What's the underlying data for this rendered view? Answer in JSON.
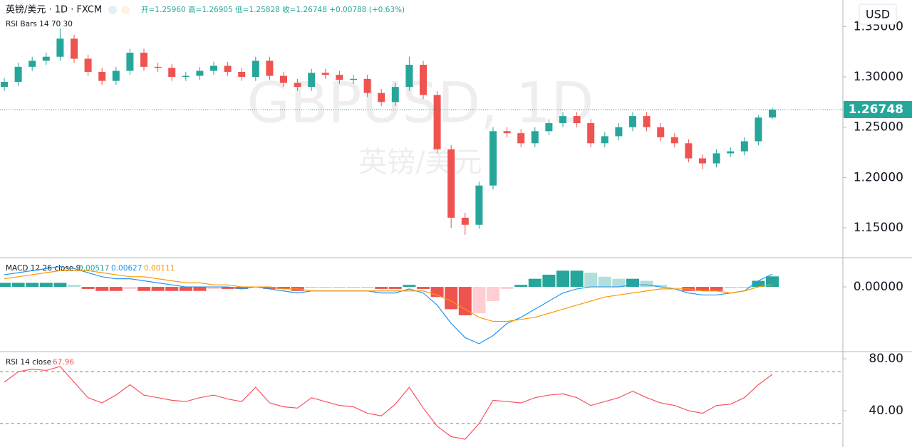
{
  "chart_data": [
    {
      "type": "candlestick",
      "title": "英镑/美元 · 1D · FXCM",
      "ohlc_legend": "开=1.25960 高=1.26905 低=1.25828 收=1.26748 +0.00788 (+0.63%)",
      "indicator_label": "RSI Bars 14 70 30",
      "watermark": "GBPUSD, 1D",
      "watermark_subtitle": "英镑/美元",
      "currency": "USD",
      "up_color": "#26a69a",
      "down_color": "#ef5350",
      "last_price": {
        "value": 1.26748,
        "label": "1.26748"
      },
      "open": [
        1.29,
        1.295,
        1.31,
        1.316,
        1.32,
        1.338,
        1.318,
        1.305,
        1.296,
        1.306,
        1.324,
        1.31,
        1.309,
        1.3,
        1.301,
        1.306,
        1.311,
        1.305,
        1.3,
        1.316,
        1.301,
        1.294,
        1.29,
        1.304,
        1.302,
        1.297,
        1.298,
        1.284,
        1.275,
        1.29,
        1.312,
        1.282,
        1.228,
        1.16,
        1.153,
        1.192,
        1.246,
        1.244,
        1.234,
        1.246,
        1.254,
        1.261,
        1.254,
        1.234,
        1.241,
        1.25,
        1.261,
        1.25,
        1.24,
        1.234,
        1.219,
        1.214,
        1.224,
        1.226,
        1.236,
        1.2596
      ],
      "high": [
        1.299,
        1.314,
        1.32,
        1.324,
        1.348,
        1.342,
        1.322,
        1.309,
        1.31,
        1.328,
        1.328,
        1.314,
        1.313,
        1.305,
        1.31,
        1.315,
        1.315,
        1.309,
        1.32,
        1.32,
        1.305,
        1.298,
        1.308,
        1.308,
        1.306,
        1.302,
        1.302,
        1.288,
        1.294,
        1.32,
        1.316,
        1.286,
        1.232,
        1.165,
        1.196,
        1.25,
        1.25,
        1.248,
        1.25,
        1.258,
        1.265,
        1.265,
        1.258,
        1.245,
        1.254,
        1.265,
        1.265,
        1.254,
        1.244,
        1.238,
        1.223,
        1.228,
        1.23,
        1.24,
        1.262,
        1.26905
      ],
      "low": [
        1.286,
        1.291,
        1.306,
        1.312,
        1.316,
        1.314,
        1.301,
        1.292,
        1.292,
        1.302,
        1.306,
        1.305,
        1.296,
        1.296,
        1.297,
        1.302,
        1.301,
        1.296,
        1.296,
        1.297,
        1.29,
        1.286,
        1.286,
        1.298,
        1.293,
        1.293,
        1.28,
        1.271,
        1.271,
        1.286,
        1.278,
        1.224,
        1.15,
        1.143,
        1.149,
        1.188,
        1.24,
        1.23,
        1.23,
        1.242,
        1.25,
        1.25,
        1.23,
        1.23,
        1.237,
        1.246,
        1.246,
        1.236,
        1.23,
        1.215,
        1.208,
        1.21,
        1.22,
        1.222,
        1.232,
        1.25828
      ],
      "close": [
        1.295,
        1.31,
        1.316,
        1.32,
        1.338,
        1.318,
        1.305,
        1.296,
        1.306,
        1.324,
        1.31,
        1.309,
        1.3,
        1.301,
        1.306,
        1.311,
        1.305,
        1.3,
        1.316,
        1.301,
        1.294,
        1.29,
        1.304,
        1.302,
        1.297,
        1.298,
        1.284,
        1.275,
        1.29,
        1.312,
        1.282,
        1.228,
        1.16,
        1.153,
        1.192,
        1.246,
        1.244,
        1.234,
        1.246,
        1.254,
        1.261,
        1.254,
        1.234,
        1.241,
        1.25,
        1.261,
        1.25,
        1.24,
        1.234,
        1.219,
        1.214,
        1.224,
        1.226,
        1.236,
        1.2596,
        1.26748
      ],
      "ylim": [
        1.1203,
        1.3764
      ],
      "yticks": [
        {
          "value": 1.15,
          "label": "1.15000"
        },
        {
          "value": 1.2,
          "label": "1.20000"
        },
        {
          "value": 1.25,
          "label": "1.25000"
        },
        {
          "value": 1.3,
          "label": "1.30000"
        },
        {
          "value": 1.35,
          "label": "1.35000"
        }
      ]
    },
    {
      "type": "macd",
      "title": "MACD 12 26 close 9",
      "legend": [
        {
          "value": 0.00517,
          "label": "0.00517",
          "color": "#26a69a"
        },
        {
          "value": 0.00627,
          "label": "0.00627",
          "color": "#2196f3"
        },
        {
          "value": 0.00111,
          "label": "0.00111",
          "color": "#ff9800"
        }
      ],
      "histogram": {
        "colors": [
          "#26a69a",
          "#b2dfdb",
          "#ffcdd2",
          "#ef5350"
        ],
        "values": [
          0.002,
          0.002,
          0.002,
          0.002,
          0.002,
          0.001,
          -0.001,
          -0.002,
          -0.002,
          -0.001,
          -0.002,
          -0.002,
          -0.002,
          -0.002,
          -0.002,
          -0.001,
          -0.001,
          -0.001,
          0.0,
          -0.001,
          -0.001,
          -0.002,
          0.0,
          0.0,
          0.0,
          0.0,
          0.0,
          -0.001,
          -0.001,
          0.001,
          -0.001,
          -0.005,
          -0.011,
          -0.014,
          -0.013,
          -0.007,
          -0.001,
          0.001,
          0.004,
          0.006,
          0.008,
          0.008,
          0.007,
          0.005,
          0.004,
          0.004,
          0.003,
          0.001,
          0.0,
          -0.002,
          -0.002,
          -0.002,
          0.0,
          0.0,
          0.003,
          0.00517
        ]
      },
      "macd": {
        "color": "#2196f3",
        "values": [
          0.006,
          0.007,
          0.008,
          0.009,
          0.01,
          0.009,
          0.007,
          0.005,
          0.004,
          0.004,
          0.003,
          0.002,
          0.001,
          0.0,
          0.0,
          0.0,
          0.0,
          -0.001,
          0.0,
          -0.001,
          -0.002,
          -0.003,
          -0.002,
          -0.002,
          -0.002,
          -0.002,
          -0.002,
          -0.003,
          -0.003,
          -0.001,
          -0.003,
          -0.009,
          -0.018,
          -0.025,
          -0.028,
          -0.024,
          -0.018,
          -0.015,
          -0.011,
          -0.007,
          -0.003,
          -0.001,
          0.0,
          0.0,
          0.0,
          0.001,
          0.001,
          0.0,
          -0.001,
          -0.003,
          -0.004,
          -0.004,
          -0.003,
          -0.002,
          0.003,
          0.00627
        ]
      },
      "signal": {
        "color": "#ff9800",
        "values": [
          0.004,
          0.005,
          0.006,
          0.007,
          0.008,
          0.008,
          0.008,
          0.007,
          0.006,
          0.005,
          0.005,
          0.004,
          0.003,
          0.002,
          0.002,
          0.001,
          0.001,
          0.0,
          0.0,
          0.0,
          -0.001,
          -0.001,
          -0.002,
          -0.002,
          -0.002,
          -0.002,
          -0.002,
          -0.002,
          -0.002,
          -0.002,
          -0.002,
          -0.004,
          -0.007,
          -0.011,
          -0.015,
          -0.017,
          -0.017,
          -0.016,
          -0.015,
          -0.013,
          -0.011,
          -0.009,
          -0.007,
          -0.005,
          -0.004,
          -0.003,
          -0.002,
          -0.001,
          -0.001,
          -0.001,
          -0.002,
          -0.002,
          -0.003,
          -0.002,
          0.0,
          0.00111
        ]
      },
      "ylim": [
        -0.0319,
        0.0144
      ],
      "yticks": [
        {
          "value": 0,
          "label": "0.00000"
        }
      ]
    },
    {
      "type": "rsi",
      "title": "RSI 14 close",
      "last": {
        "value": 67.96,
        "label": "67.96"
      },
      "color": "#f7525f",
      "values": [
        62,
        70,
        72,
        71,
        74,
        62,
        50,
        46,
        52,
        60,
        52,
        50,
        48,
        47,
        50,
        52,
        49,
        47,
        58,
        46,
        43,
        42,
        50,
        47,
        44,
        43,
        38,
        36,
        45,
        58,
        42,
        28,
        20,
        18,
        30,
        48,
        47,
        46,
        50,
        52,
        53,
        50,
        44,
        47,
        50,
        55,
        50,
        46,
        44,
        40,
        38,
        44,
        45,
        50,
        60,
        67.96
      ],
      "bands": [
        70,
        30
      ],
      "ylim": [
        12,
        85.5
      ],
      "yticks": [
        {
          "value": 40,
          "label": "40.00"
        },
        {
          "value": 80,
          "label": "80.00"
        }
      ]
    }
  ]
}
